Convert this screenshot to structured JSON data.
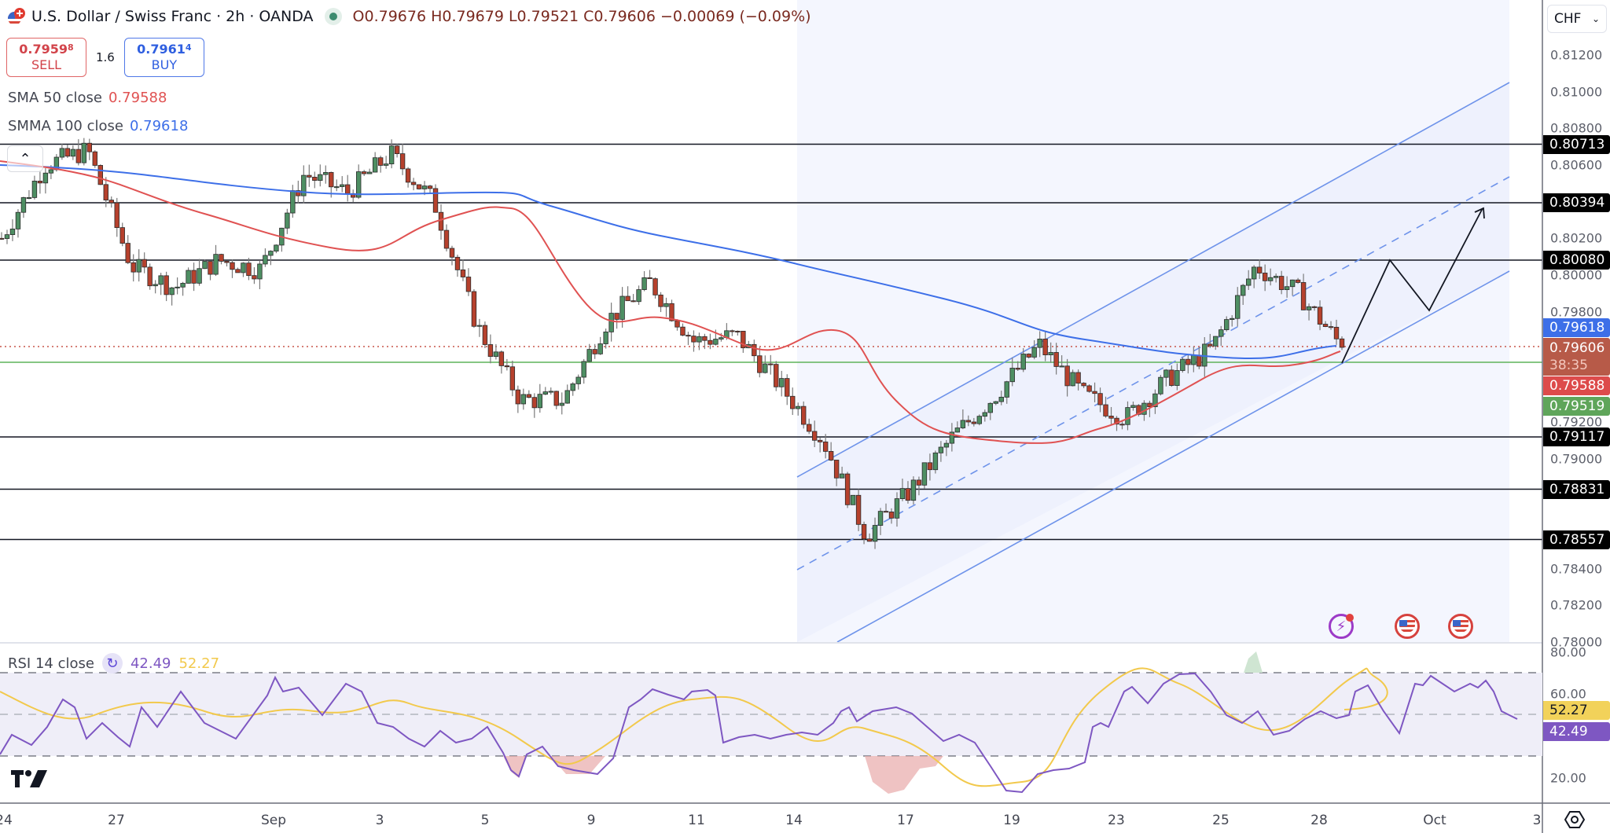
{
  "header": {
    "title": "U.S. Dollar / Swiss Franc · 2h · OANDA",
    "ohlc": {
      "open": "O0.79676",
      "high": "H0.79679",
      "low": "L0.79521",
      "close": "C0.79606",
      "change": "−0.00069 (−0.09%)"
    }
  },
  "trade": {
    "sell_price": "0.7959",
    "sell_pip": "8",
    "sell_label": "SELL",
    "spread": "1.6",
    "buy_price": "0.7961",
    "buy_pip": "4",
    "buy_label": "BUY"
  },
  "indicators": {
    "sma": {
      "label": "SMA 50 close",
      "value": "0.79588",
      "color": "#e05252"
    },
    "smma": {
      "label": "SMMA 100 close",
      "value": "0.79618",
      "color": "#3d6fe8"
    }
  },
  "rsi": {
    "label": "RSI 14 close",
    "value": "42.49",
    "ma_value": "52.27",
    "levels": [
      "80.00",
      "60.00",
      "20.00"
    ],
    "color": "#7e57c2",
    "ma_color": "#f2c94c"
  },
  "axis": {
    "currency": "CHF",
    "price_ticks": [
      "0.81200",
      "0.81000",
      "0.80800",
      "0.80600",
      "0.80200",
      "0.80000",
      "0.79800",
      "0.79200",
      "0.79000",
      "0.78400",
      "0.78200",
      "0.78000"
    ],
    "labels": [
      {
        "value": "0.80713",
        "kind": "level"
      },
      {
        "value": "0.80394",
        "kind": "level"
      },
      {
        "value": "0.80080",
        "kind": "level"
      },
      {
        "value": "0.79618",
        "kind": "smma"
      },
      {
        "value": "0.79606",
        "kind": "last",
        "countdown": "38:35"
      },
      {
        "value": "0.79588",
        "kind": "sma"
      },
      {
        "value": "0.79519",
        "kind": "low"
      },
      {
        "value": "0.79117",
        "kind": "level"
      },
      {
        "value": "0.78831",
        "kind": "level"
      },
      {
        "value": "0.78557",
        "kind": "level"
      }
    ],
    "time_ticks": [
      "24",
      "27",
      "Sep",
      "3",
      "5",
      "9",
      "11",
      "14",
      "17",
      "19",
      "23",
      "25",
      "28",
      "Oct",
      "3"
    ]
  },
  "colors": {
    "up": "#4e8f63",
    "down": "#b6412d",
    "channel_fill": "#eef1fd",
    "channel_line": "#6e93ea",
    "rsi_band": "#efeef8"
  },
  "chart_data": [
    {
      "type": "candlestick",
      "title": "U.S. Dollar / Swiss Franc · 2h · OANDA",
      "xlabel": "",
      "ylabel": "CHF",
      "ylim": [
        0.78,
        0.8125
      ],
      "x_ticks": [
        "24",
        "27",
        "Sep",
        "3",
        "5",
        "9",
        "11",
        "14",
        "17",
        "19",
        "23",
        "25",
        "28",
        "Oct",
        "3"
      ],
      "close_path": [
        {
          "date": "Aug 24",
          "price": 0.802
        },
        {
          "date": "Aug 26",
          "price": 0.806
        },
        {
          "date": "Aug 27",
          "price": 0.8068
        },
        {
          "date": "Aug 28",
          "price": 0.8005
        },
        {
          "date": "Aug 29",
          "price": 0.7993
        },
        {
          "date": "Aug 30",
          "price": 0.8008
        },
        {
          "date": "Sep 1",
          "price": 0.8003
        },
        {
          "date": "Sep 2",
          "price": 0.8055
        },
        {
          "date": "Sep 3",
          "price": 0.8045
        },
        {
          "date": "Sep 4",
          "price": 0.8066
        },
        {
          "date": "Sep 5",
          "price": 0.804
        },
        {
          "date": "Sep 6",
          "price": 0.7972
        },
        {
          "date": "Sep 8",
          "price": 0.7932
        },
        {
          "date": "Sep 9",
          "price": 0.7932
        },
        {
          "date": "Sep 10",
          "price": 0.7975
        },
        {
          "date": "Sep 11",
          "price": 0.7996
        },
        {
          "date": "Sep 12",
          "price": 0.7964
        },
        {
          "date": "Sep 13",
          "price": 0.7967
        },
        {
          "date": "Sep 15",
          "price": 0.794
        },
        {
          "date": "Sep 16",
          "price": 0.791
        },
        {
          "date": "Sep 17",
          "price": 0.7858
        },
        {
          "date": "Sep 18",
          "price": 0.7882
        },
        {
          "date": "Sep 18b",
          "price": 0.7912
        },
        {
          "date": "Sep 19",
          "price": 0.7935
        },
        {
          "date": "Sep 21",
          "price": 0.7962
        },
        {
          "date": "Sep 22",
          "price": 0.7935
        },
        {
          "date": "Sep 23",
          "price": 0.7922
        },
        {
          "date": "Sep 24",
          "price": 0.7944
        },
        {
          "date": "Sep 25",
          "price": 0.796
        },
        {
          "date": "Sep 26",
          "price": 0.8005
        },
        {
          "date": "Sep 27",
          "price": 0.799
        },
        {
          "date": "Sep 28",
          "price": 0.7961
        }
      ],
      "series": [
        {
          "name": "SMA 50 close",
          "last": 0.79588
        },
        {
          "name": "SMMA 100 close",
          "last": 0.79618
        }
      ],
      "horizontal_levels": [
        0.80713,
        0.80394,
        0.8008,
        0.79117,
        0.78831,
        0.78557
      ],
      "last_price": 0.79606,
      "annotations": [
        "Ascending regression channel from Sep 14",
        "Projected zig-zag path up to ~0.8035"
      ]
    },
    {
      "type": "line",
      "title": "RSI 14 close",
      "series": [
        {
          "name": "RSI",
          "last": 42.49
        },
        {
          "name": "RSI MA",
          "last": 52.27
        }
      ],
      "ylim": [
        10,
        85
      ],
      "bands": [
        30,
        50,
        70
      ]
    }
  ]
}
